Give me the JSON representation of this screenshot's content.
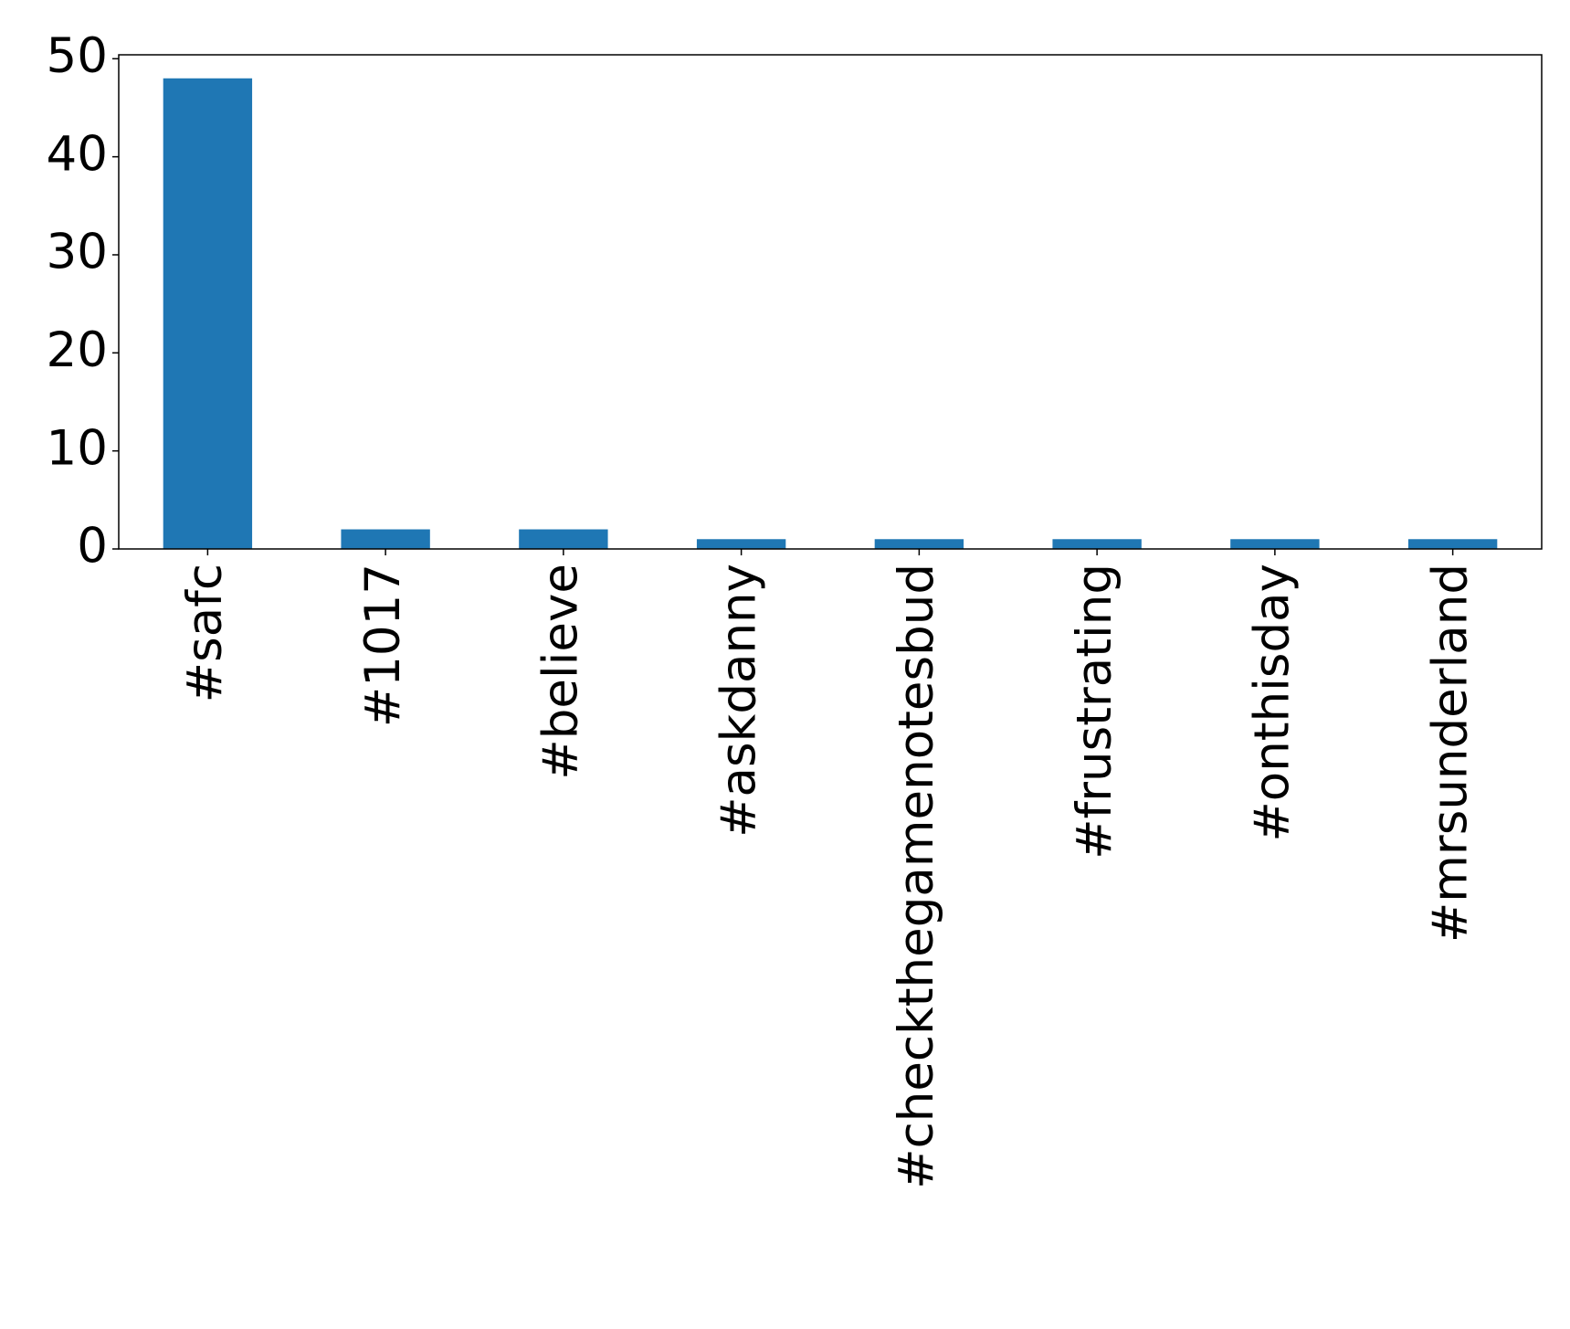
{
  "chart_data": {
    "type": "bar",
    "categories": [
      "#safc",
      "#1017",
      "#believe",
      "#askdanny",
      "#checkthegamenotesbud",
      "#frustrating",
      "#onthisday",
      "#mrsunderland"
    ],
    "values": [
      48,
      2,
      2,
      1,
      1,
      1,
      1,
      1
    ],
    "color": "#1f77b4",
    "ylim": [
      0,
      50.4
    ],
    "yticks": [
      0,
      10,
      20,
      30,
      40,
      50
    ],
    "grid": false
  }
}
